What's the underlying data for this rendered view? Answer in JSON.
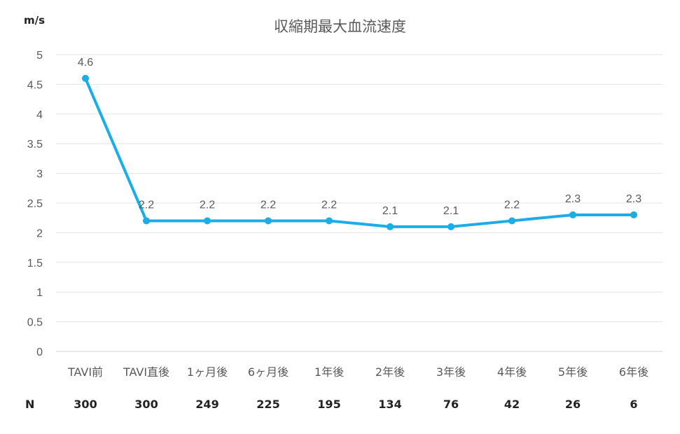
{
  "chart_data": {
    "type": "line",
    "title": "収縮期最大血流速度",
    "ylabel": "m/s",
    "xlabel": "",
    "categories": [
      "TAVI前",
      "TAVI直後",
      "1ヶ月後",
      "6ヶ月後",
      "1年後",
      "2年後",
      "3年後",
      "4年後",
      "5年後",
      "6年後"
    ],
    "series": [
      {
        "values": [
          4.6,
          2.2,
          2.2,
          2.2,
          2.2,
          2.1,
          2.1,
          2.2,
          2.3,
          2.3
        ],
        "color": "#1AADE8"
      }
    ],
    "ylim": [
      0,
      5
    ],
    "yticks": [
      "0",
      "0.5",
      "1",
      "1.5",
      "2",
      "2.5",
      "3",
      "3.5",
      "4",
      "4.5",
      "5"
    ],
    "data_labels": [
      "4.6",
      "2.2",
      "2.2",
      "2.2",
      "2.2",
      "2.1",
      "2.1",
      "2.2",
      "2.3",
      "2.3"
    ],
    "grid": true,
    "legend": "none"
  },
  "n_row": {
    "label": "N",
    "values": [
      "300",
      "300",
      "249",
      "225",
      "195",
      "134",
      "76",
      "42",
      "26",
      "6"
    ]
  }
}
